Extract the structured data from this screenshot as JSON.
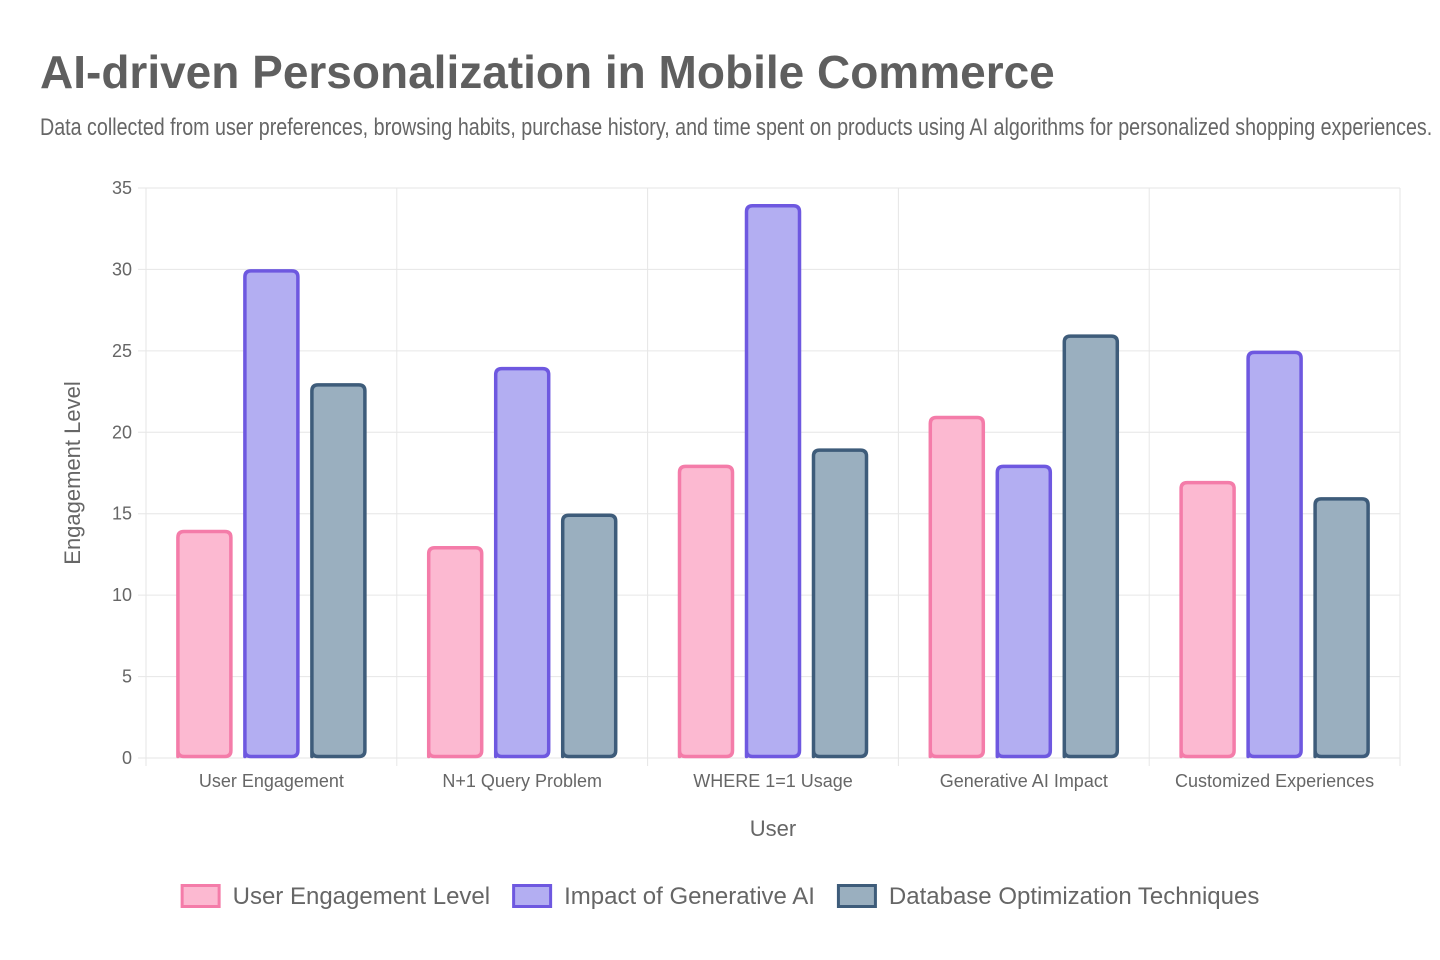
{
  "title": "AI-driven Personalization in Mobile Commerce",
  "subtitle": "Data collected from user preferences, browsing habits, purchase history, and time spent on products using AI algorithms for personalized shopping experiences.",
  "colors": {
    "user_engagement_fill": "#fcb9d1",
    "user_engagement_border": "#f47ca9",
    "generative_ai_fill": "#b3aef2",
    "generative_ai_border": "#6e58e0",
    "database_fill": "#9aafbf",
    "database_border": "#3e5c7a",
    "grid": "#e6e6e6",
    "text": "#666666"
  },
  "chart_data": {
    "type": "bar",
    "title": "AI-driven Personalization in Mobile Commerce",
    "xlabel": "User",
    "ylabel": "Engagement Level",
    "ylim": [
      0,
      35
    ],
    "yticks": [
      0,
      5,
      10,
      15,
      20,
      25,
      30,
      35
    ],
    "grid": true,
    "legend_position": "bottom",
    "categories": [
      "User Engagement",
      "N+1 Query Problem",
      "WHERE 1=1 Usage",
      "Generative AI Impact",
      "Customized Experiences"
    ],
    "series": [
      {
        "name": "User Engagement Level",
        "values": [
          14,
          13,
          18,
          21,
          17
        ],
        "fill": "#fcb9d1",
        "border": "#f47ca9"
      },
      {
        "name": "Impact of Generative AI",
        "values": [
          30,
          24,
          34,
          18,
          25
        ],
        "fill": "#b3aef2",
        "border": "#6e58e0"
      },
      {
        "name": "Database Optimization Techniques",
        "values": [
          23,
          15,
          19,
          26,
          16
        ],
        "fill": "#9aafbf",
        "border": "#3e5c7a"
      }
    ]
  }
}
